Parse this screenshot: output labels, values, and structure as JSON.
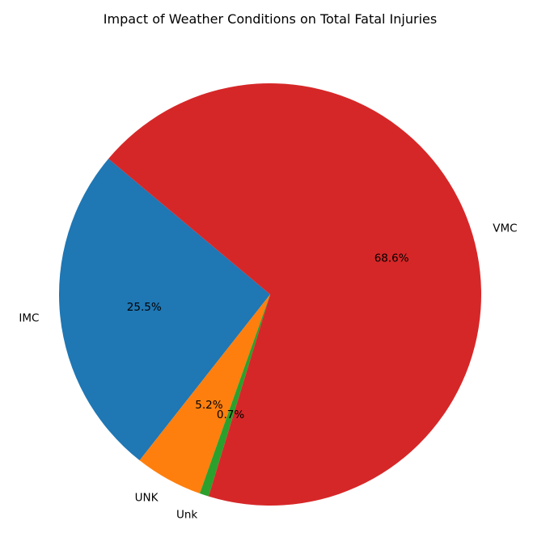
{
  "chart_data": {
    "type": "pie",
    "title": "Impact of Weather Conditions on Total Fatal Injuries",
    "categories": [
      "IMC",
      "UNK",
      "Unk",
      "VMC"
    ],
    "values": [
      25.5,
      5.2,
      0.7,
      68.6
    ],
    "percent_labels": [
      "25.5%",
      "5.2%",
      "0.7%",
      "68.6%"
    ],
    "colors": [
      "#1f77b4",
      "#ff7f0e",
      "#2ca02c",
      "#d62728"
    ],
    "start_angle_deg": 140,
    "direction": "counterclockwise"
  }
}
